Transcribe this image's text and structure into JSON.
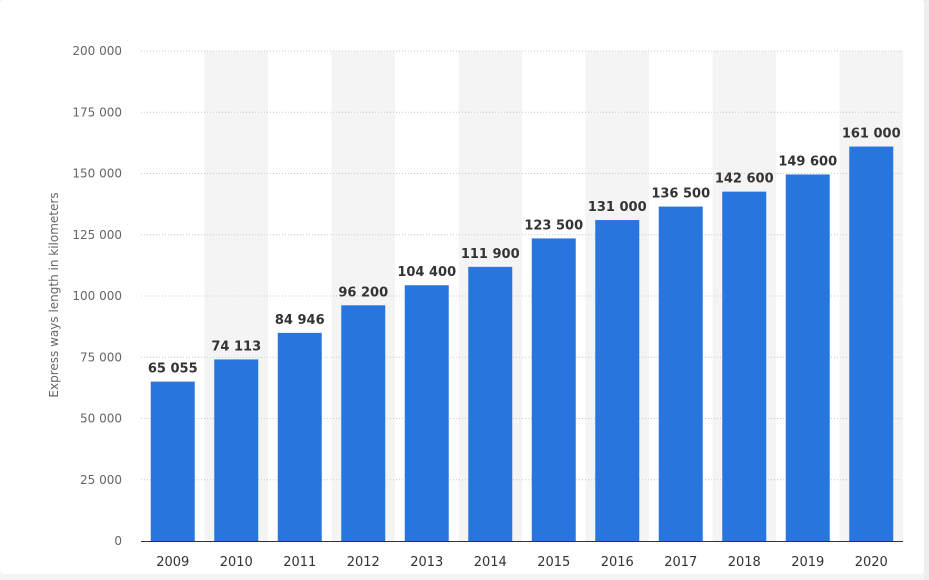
{
  "chart_data": {
    "type": "bar",
    "title": "",
    "xlabel": "",
    "ylabel": "Express ways length in kilometers",
    "ylim": [
      0,
      200000
    ],
    "yticks": [
      0,
      25000,
      50000,
      75000,
      100000,
      125000,
      150000,
      175000,
      200000
    ],
    "ytick_labels": [
      "0",
      "25 000",
      "50 000",
      "75 000",
      "100 000",
      "125 000",
      "150 000",
      "175 000",
      "200 000"
    ],
    "categories": [
      "2009",
      "2010",
      "2011",
      "2012",
      "2013",
      "2014",
      "2015",
      "2016",
      "2017",
      "2018",
      "2019",
      "2020"
    ],
    "values": [
      65055,
      74113,
      84946,
      96200,
      104400,
      111900,
      123500,
      131000,
      136500,
      142600,
      149600,
      161000
    ],
    "value_labels": [
      "65 055",
      "74 113",
      "84 946",
      "96 200",
      "104 400",
      "111 900",
      "123 500",
      "131 000",
      "136 500",
      "142 600",
      "149 600",
      "161 000"
    ],
    "grid": true,
    "legend": "none",
    "colors": {
      "bar": "#2876dd",
      "grid": "#c8c8c8",
      "band": "#f4f4f4",
      "axis": "#333333"
    }
  }
}
